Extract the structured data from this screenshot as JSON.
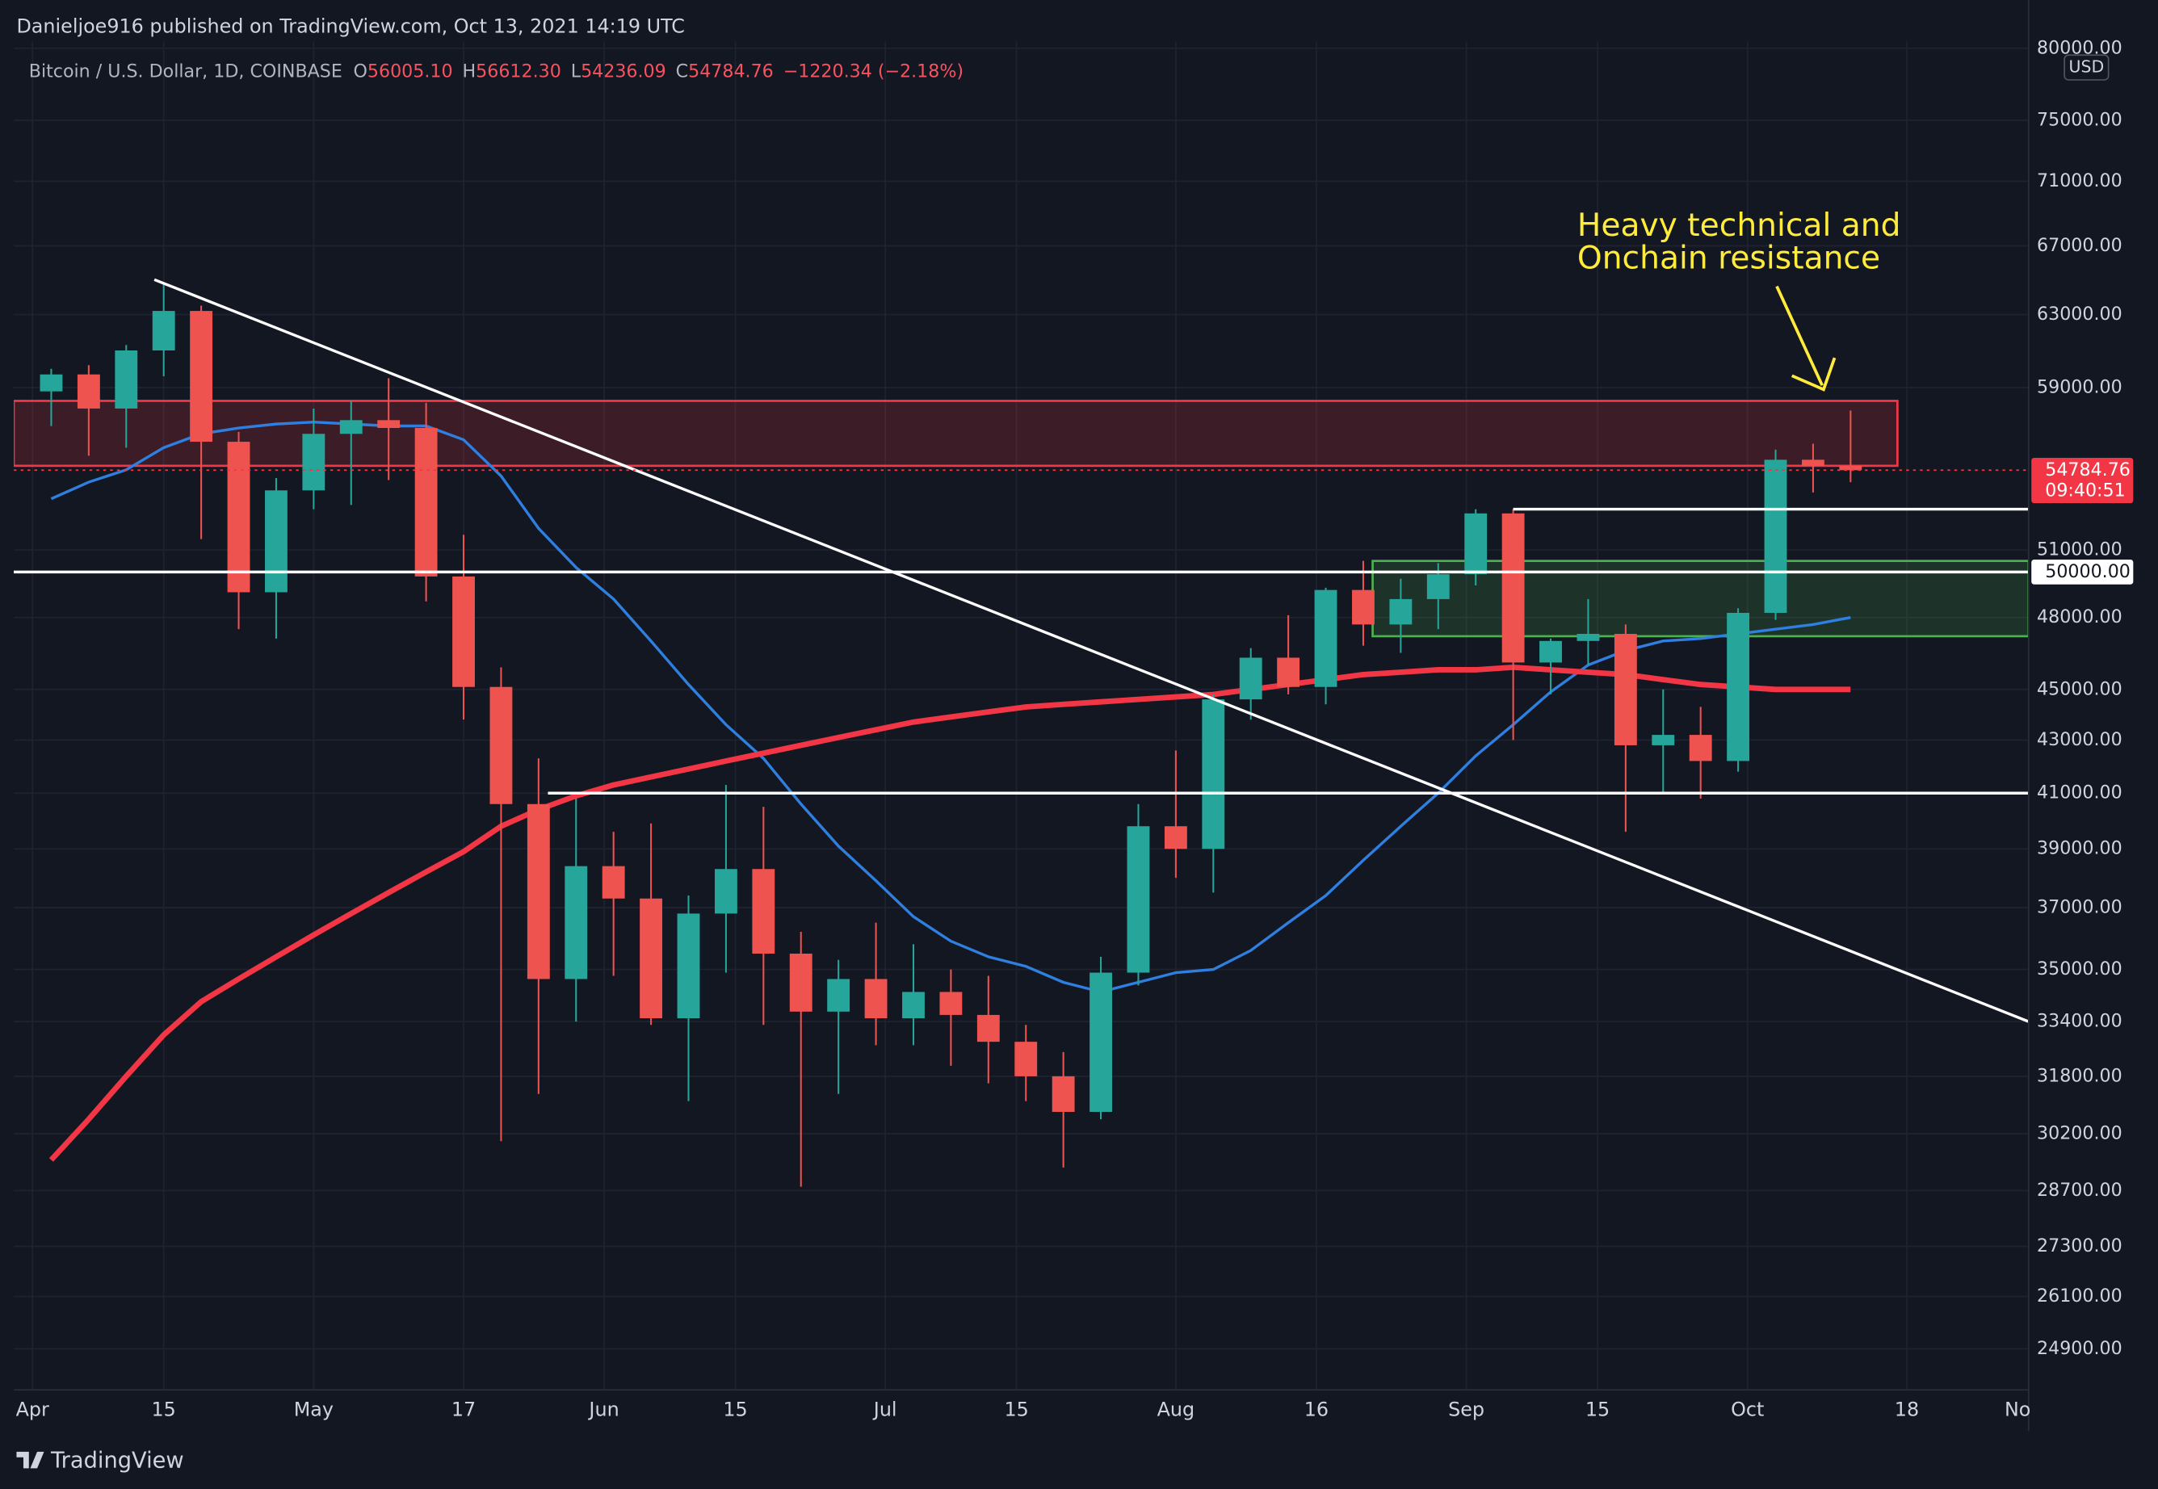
{
  "header": {
    "publisher": "Danieljoe916 published on TradingView.com, Oct 13, 2021 14:19 UTC"
  },
  "chart_data": {
    "type": "candlestick",
    "title": "Bitcoin / U.S. Dollar, 1D, COINBASE",
    "ohlc_legend": [
      {
        "key": "O",
        "value": 56005.1,
        "label": "56005.10"
      },
      {
        "key": "H",
        "value": 56612.3,
        "label": "56612.30"
      },
      {
        "key": "L",
        "value": 54236.09,
        "label": "54236.09"
      },
      {
        "key": "C",
        "value": 54784.76,
        "label": "54784.76"
      }
    ],
    "change": "−1220.34 (−2.18%)",
    "x": [
      "2021-04-01",
      "2021-04-05",
      "2021-04-09",
      "2021-04-13",
      "2021-04-17",
      "2021-04-21",
      "2021-04-25",
      "2021-04-29",
      "2021-05-03",
      "2021-05-07",
      "2021-05-11",
      "2021-05-15",
      "2021-05-19",
      "2021-05-23",
      "2021-05-27",
      "2021-05-31",
      "2021-06-04",
      "2021-06-08",
      "2021-06-12",
      "2021-06-16",
      "2021-06-20",
      "2021-06-24",
      "2021-06-28",
      "2021-07-02",
      "2021-07-06",
      "2021-07-10",
      "2021-07-14",
      "2021-07-18",
      "2021-07-22",
      "2021-07-26",
      "2021-07-30",
      "2021-08-03",
      "2021-08-07",
      "2021-08-11",
      "2021-08-15",
      "2021-08-19",
      "2021-08-23",
      "2021-08-27",
      "2021-08-31",
      "2021-09-04",
      "2021-09-08",
      "2021-09-12",
      "2021-09-16",
      "2021-09-20",
      "2021-09-24",
      "2021-09-28",
      "2021-10-02",
      "2021-10-06",
      "2021-10-10"
    ],
    "open": [
      58800,
      59700,
      57900,
      61000,
      63200,
      56200,
      49100,
      53800,
      56600,
      57300,
      56900,
      49800,
      45100,
      40600,
      34700,
      38400,
      37300,
      33500,
      36800,
      38300,
      35500,
      33700,
      34700,
      33500,
      34300,
      33600,
      32800,
      31800,
      30800,
      34900,
      39800,
      39000,
      44600,
      46300,
      45100,
      49200,
      47700,
      48800,
      49900,
      52700,
      46100,
      47000,
      47300,
      42800,
      43200,
      42200,
      48200,
      55300,
      55000
    ],
    "high": [
      60000,
      60200,
      61300,
      64850,
      63500,
      56700,
      54400,
      57900,
      58300,
      59500,
      58200,
      51700,
      45900,
      42300,
      40800,
      39600,
      39900,
      37400,
      41300,
      40500,
      36200,
      35300,
      36500,
      35800,
      35000,
      34800,
      33300,
      32500,
      35400,
      40600,
      42600,
      44800,
      46700,
      48100,
      49300,
      50500,
      49700,
      50400,
      52900,
      52900,
      47100,
      48800,
      47700,
      45000,
      44300,
      48400,
      55800,
      56100,
      57800
    ],
    "low": [
      57000,
      55500,
      55900,
      59600,
      51500,
      47500,
      47100,
      52900,
      53100,
      54300,
      48700,
      43800,
      30000,
      31300,
      33400,
      34800,
      33300,
      31100,
      34900,
      33300,
      28800,
      31300,
      32700,
      32700,
      32100,
      31600,
      31100,
      29300,
      30600,
      34500,
      38000,
      37500,
      43800,
      44800,
      44400,
      46800,
      46500,
      47500,
      49400,
      43000,
      44800,
      46000,
      39600,
      41000,
      40800,
      41800,
      47900,
      53700,
      54200
    ],
    "close": [
      59700,
      57900,
      61000,
      63200,
      56200,
      49100,
      53800,
      56600,
      57300,
      56900,
      49800,
      45100,
      40600,
      34700,
      38400,
      37300,
      33500,
      36800,
      38300,
      35500,
      33700,
      34700,
      33500,
      34300,
      33600,
      32800,
      31800,
      30800,
      34900,
      39800,
      39000,
      44600,
      46300,
      45100,
      49200,
      47700,
      48800,
      49900,
      52700,
      46100,
      47000,
      47300,
      42800,
      43200,
      42200,
      48200,
      55300,
      55000,
      54784.76
    ],
    "up_color": "#26a69a",
    "down_color": "#ef5350",
    "overlays": [
      {
        "color": "#2f7fe0",
        "values": [
          53400,
          54200,
          54800,
          55900,
          56600,
          56900,
          57100,
          57200,
          57100,
          57000,
          57000,
          56300,
          54500,
          52000,
          50200,
          48800,
          47000,
          45200,
          43600,
          42300,
          40600,
          39100,
          37900,
          36700,
          35900,
          35400,
          35100,
          34600,
          34300,
          34600,
          34900,
          35000,
          35600,
          36500,
          37400,
          38600,
          39800,
          41000,
          42400,
          43600,
          44900,
          46000,
          46600,
          47000,
          47100,
          47300,
          47500,
          47700,
          48000
        ]
      },
      {
        "color": "#f23645",
        "values": [
          29500,
          30600,
          31800,
          33000,
          34000,
          34700,
          35400,
          36100,
          36800,
          37500,
          38200,
          38900,
          39800,
          40400,
          40900,
          41300,
          41600,
          41900,
          42200,
          42500,
          42800,
          43100,
          43400,
          43700,
          43900,
          44100,
          44300,
          44400,
          44500,
          44600,
          44700,
          44800,
          45000,
          45200,
          45400,
          45600,
          45700,
          45800,
          45800,
          45900,
          45800,
          45700,
          45600,
          45400,
          45200,
          45100,
          45000,
          45000,
          45000
        ]
      }
    ],
    "xlim": [
      "2021-03-30",
      "2021-10-31"
    ],
    "xticks": [
      {
        "value": "2021-04-01",
        "label": "Apr"
      },
      {
        "value": "2021-04-15",
        "label": "15"
      },
      {
        "value": "2021-05-01",
        "label": "May"
      },
      {
        "value": "2021-05-17",
        "label": "17"
      },
      {
        "value": "2021-06-01",
        "label": "Jun"
      },
      {
        "value": "2021-06-15",
        "label": "15"
      },
      {
        "value": "2021-07-01",
        "label": "Jul"
      },
      {
        "value": "2021-07-15",
        "label": "15"
      },
      {
        "value": "2021-08-01",
        "label": "Aug"
      },
      {
        "value": "2021-08-16",
        "label": "16"
      },
      {
        "value": "2021-09-01",
        "label": "Sep"
      },
      {
        "value": "2021-09-15",
        "label": "15"
      },
      {
        "value": "2021-10-01",
        "label": "Oct"
      },
      {
        "value": "2021-10-18",
        "label": "18"
      },
      {
        "value": "2021-11-01",
        "label": "No"
      }
    ],
    "ylim": [
      24000,
      80500
    ],
    "log_scale": true,
    "grid": true,
    "yticks": [
      {
        "value": 80000,
        "label": "80000.00"
      },
      {
        "value": 75000,
        "label": "75000.00"
      },
      {
        "value": 71000,
        "label": "71000.00"
      },
      {
        "value": 67000,
        "label": "67000.00"
      },
      {
        "value": 63000,
        "label": "63000.00"
      },
      {
        "value": 59000,
        "label": "59000.00"
      },
      {
        "value": 51000,
        "label": "51000.00"
      },
      {
        "value": 48000,
        "label": "48000.00"
      },
      {
        "value": 45000,
        "label": "45000.00"
      },
      {
        "value": 43000,
        "label": "43000.00"
      },
      {
        "value": 41000,
        "label": "41000.00"
      },
      {
        "value": 39000,
        "label": "39000.00"
      },
      {
        "value": 37000,
        "label": "37000.00"
      },
      {
        "value": 35000,
        "label": "35000.00"
      },
      {
        "value": 33400,
        "label": "33400.00"
      },
      {
        "value": 31800,
        "label": "31800.00"
      },
      {
        "value": 30200,
        "label": "30200.00"
      },
      {
        "value": 28700,
        "label": "28700.00"
      },
      {
        "value": 27300,
        "label": "27300.00"
      },
      {
        "value": 26100,
        "label": "26100.00"
      },
      {
        "value": 24900,
        "label": "24900.00"
      }
    ],
    "currency": "USD",
    "last_price": {
      "value": 54784.76,
      "label": "54784.76"
    },
    "countdown": "09:40:51",
    "level_tag": {
      "value": 50000,
      "label": "50000.00"
    },
    "zones": [
      {
        "from": "2021-03-30",
        "to": "2021-10-17",
        "low": 55000,
        "high": 58300,
        "color": "#f23645"
      },
      {
        "from": "2021-08-22",
        "to": "2021-10-31",
        "low": 47200,
        "high": 50500,
        "color": "#4caf50"
      }
    ],
    "levels": [
      {
        "from": "2021-03-30",
        "price": 50000
      },
      {
        "from": "2021-05-26",
        "price": 41000
      },
      {
        "from": "2021-09-06",
        "price": 52900
      }
    ],
    "trendline": [
      {
        "date": "2021-04-14",
        "price": 65000
      },
      {
        "date": "2021-10-31",
        "price": 33400
      }
    ],
    "annotation": [
      "Heavy technical and",
      "Onchain resistance"
    ]
  },
  "footer": {
    "brand": "TradingView"
  }
}
